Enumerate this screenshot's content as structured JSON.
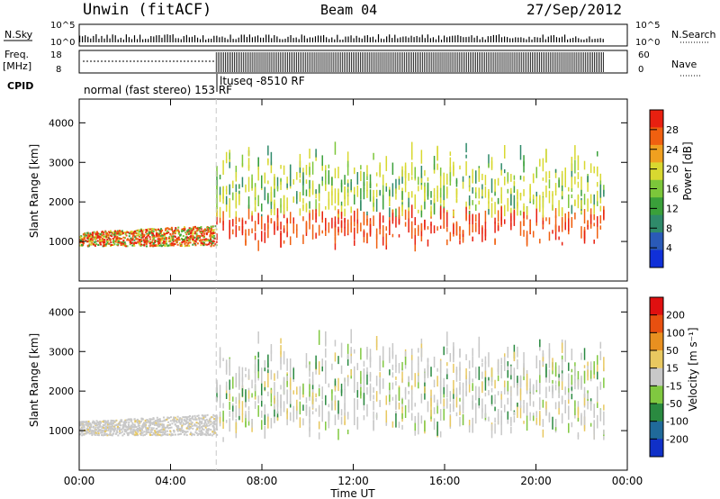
{
  "header": {
    "station": "Unwin (fitACF)",
    "beam": "Beam 04",
    "date": "27/Sep/2012"
  },
  "status_panels": {
    "nsky_label": "N.Sky",
    "nsearch_label": "N.Search",
    "freq_label": "Freq.",
    "freq_unit": "[MHz]",
    "nave_label": "Nave",
    "cpid_label": "CPID",
    "count_ticks_left": [
      "10^5",
      "10^0"
    ],
    "count_ticks_right": [
      "10^5",
      "10^0"
    ],
    "freq_ticks": [
      "18",
      "8"
    ],
    "nave_ticks": [
      "60",
      "0"
    ],
    "cpid_modes": [
      {
        "label": "normal (fast stereo) 153 RF",
        "start_hour": 0,
        "end_hour": 6
      },
      {
        "label": "ltuseq -8510 RF",
        "start_hour": 6,
        "end_hour": 23
      }
    ]
  },
  "colors": {
    "power_scale": [
      "#1030d8",
      "#2a5ab8",
      "#2f8a6a",
      "#3aa03a",
      "#7cc63a",
      "#d8d830",
      "#f0a020",
      "#f06010",
      "#e82010"
    ],
    "velocity_scale": [
      "#1030c8",
      "#206a9a",
      "#2a8a40",
      "#80c840",
      "#c8c8c8",
      "#e8c860",
      "#e89020",
      "#e85010",
      "#e01010"
    ]
  },
  "chart_data": [
    {
      "type": "heatmap",
      "title": "",
      "xlabel": "",
      "ylabel": "Slant Range [km]",
      "xlim": [
        0,
        24
      ],
      "ylim": [
        0,
        4600
      ],
      "xticks": [
        "00:00",
        "04:00",
        "08:00",
        "12:00",
        "16:00",
        "20:00",
        "00:00"
      ],
      "yticks": [
        "1000",
        "2000",
        "3000",
        "4000"
      ],
      "colorbar_label": "Power [dB]",
      "colorbar_ticks": [
        "28",
        "24",
        "20",
        "16",
        "12",
        "8",
        "4"
      ],
      "colorbar_range": [
        0,
        32
      ]
    },
    {
      "type": "heatmap",
      "title": "",
      "xlabel": "Time UT",
      "ylabel": "Slant Range [km]",
      "xlim": [
        0,
        24
      ],
      "ylim": [
        0,
        4600
      ],
      "xticks": [
        "00:00",
        "04:00",
        "08:00",
        "12:00",
        "16:00",
        "20:00",
        "00:00"
      ],
      "yticks": [
        "1000",
        "2000",
        "3000",
        "4000"
      ],
      "colorbar_label": "Velocity [m s⁻¹]",
      "colorbar_ticks": [
        "200",
        "100",
        "50",
        "15",
        "-15",
        "-50",
        "-100",
        "-200"
      ]
    }
  ]
}
